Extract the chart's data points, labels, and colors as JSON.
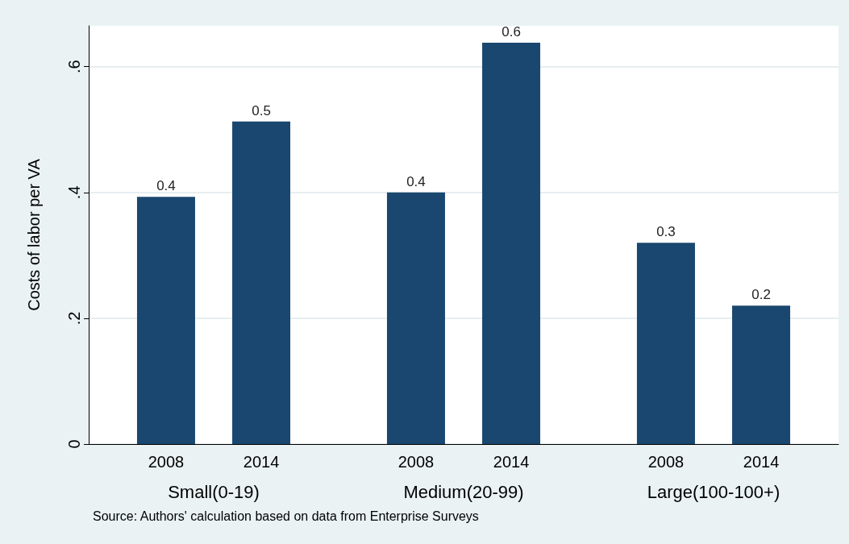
{
  "chart_data": {
    "type": "bar",
    "ylabel": "Costs of labor per VA",
    "categories": [
      "Small(0-19)",
      "Medium(20-99)",
      "Large(100-100+)"
    ],
    "series": [
      {
        "name": "2008",
        "color": "#1a476f",
        "values": [
          0.393,
          0.4,
          0.32
        ],
        "value_labels": [
          "0.4",
          "0.4",
          "0.3"
        ]
      },
      {
        "name": "2014",
        "color": "#1a476f",
        "values": [
          0.513,
          0.638,
          0.22
        ],
        "value_labels": [
          "0.5",
          "0.6",
          "0.2"
        ]
      }
    ],
    "ylim": [
      0,
      0.665
    ],
    "yticks": [
      {
        "value": 0,
        "label": "0"
      },
      {
        "value": 0.2,
        "label": ".2"
      },
      {
        "value": 0.4,
        "label": ".4"
      },
      {
        "value": 0.6,
        "label": ".6"
      }
    ],
    "grid": "y",
    "legend": false,
    "annotations": [
      "Source: Authors' calculation based on data from Enterprise Surveys"
    ]
  }
}
